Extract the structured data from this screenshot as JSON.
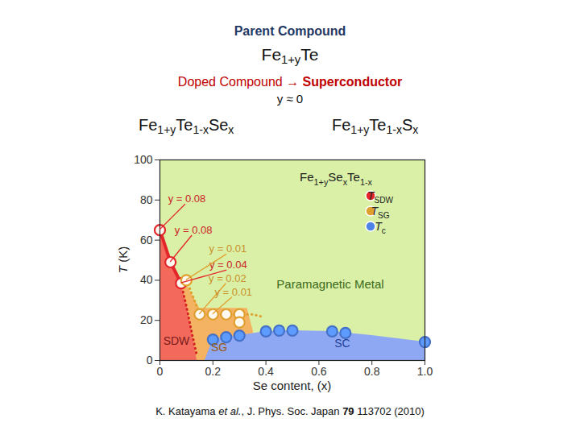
{
  "slide": {
    "parent_label": [
      {
        "text": "Parent Compound",
        "bold": true
      }
    ],
    "parent_formula": [
      {
        "text": "Fe"
      },
      {
        "text": "1+y",
        "sub": true
      },
      {
        "text": "Te"
      }
    ],
    "doped_label": [
      {
        "text": "Doped Compound → "
      },
      {
        "text": "Superconductor",
        "bold": true
      }
    ],
    "y_condition": [
      {
        "text": "y ≈ 0"
      }
    ],
    "doped_formulas": [
      [
        {
          "text": "Fe"
        },
        {
          "text": "1+y",
          "sub": true
        },
        {
          "text": "Te"
        },
        {
          "text": "1-x",
          "sub": true
        },
        {
          "text": "Se"
        },
        {
          "text": "x",
          "sub": true
        }
      ],
      [
        {
          "text": "Fe"
        },
        {
          "text": "1+y",
          "sub": true
        },
        {
          "text": "Te"
        },
        {
          "text": "1-x",
          "sub": true
        },
        {
          "text": "S"
        },
        {
          "text": "x",
          "sub": true
        }
      ]
    ],
    "citation": [
      {
        "text": "K. Katayama "
      },
      {
        "text": "et al.",
        "italic": true
      },
      {
        "text": ", J. Phys. Soc. Japan "
      },
      {
        "text": "79",
        "bold": true
      },
      {
        "text": " 113702 (2010)"
      }
    ]
  },
  "chart_data": {
    "type": "scatter",
    "x_label": [
      {
        "text": "Se content, (x)"
      }
    ],
    "y_label": [
      {
        "text": "T",
        "italic": true
      },
      {
        "text": " (K)"
      }
    ],
    "xlim": [
      0,
      1
    ],
    "xticks": [
      0,
      0.2,
      0.4,
      0.6,
      0.8,
      {
        "value": 1,
        "label": "1.0"
      }
    ],
    "ylim": [
      0,
      100
    ],
    "yticks": [
      0,
      20,
      40,
      60,
      80,
      100
    ],
    "grid": false,
    "legend": "top-right",
    "legend_title": [
      {
        "text": "Fe"
      },
      {
        "text": "1+y",
        "sub": true
      },
      {
        "text": "Se"
      },
      {
        "text": "x",
        "sub": true
      },
      {
        "text": "Te"
      },
      {
        "text": "1-x",
        "sub": true
      }
    ],
    "series": [
      {
        "name": [
          {
            "text": "T",
            "italic": true
          },
          {
            "text": "SDW",
            "sub": true
          }
        ],
        "color": "#e3262b",
        "marker": "open",
        "x": [
          0,
          0.04,
          0.08
        ],
        "values": [
          65,
          49,
          38.5
        ],
        "point_labels": [
          "y = 0.08",
          "y = 0.08",
          "y = 0.04"
        ]
      },
      {
        "name": [
          {
            "text": "T",
            "italic": true
          },
          {
            "text": "SG",
            "sub": true
          }
        ],
        "color": "#e0a030",
        "marker": "open",
        "x": [
          0.1,
          0.15,
          0.2,
          0.25,
          0.3,
          0.3
        ],
        "values": [
          40,
          23,
          23,
          23,
          23,
          19
        ],
        "point_labels": [
          "y = 0.01",
          "y = 0.02",
          "y = 0.01",
          null,
          null,
          null
        ]
      },
      {
        "name": [
          {
            "text": "T",
            "italic": true
          },
          {
            "text": "c",
            "sub": true
          }
        ],
        "color": "#4f82e6",
        "marker": "filled",
        "x": [
          0.2,
          0.25,
          0.3,
          0.4,
          0.45,
          0.5,
          0.65,
          0.7,
          1
        ],
        "values": [
          10.4,
          11.6,
          12.4,
          14.5,
          14.9,
          14.9,
          14.5,
          13.7,
          9.2
        ],
        "point_labels": [
          null,
          null,
          null,
          null,
          null,
          null,
          null,
          null,
          null
        ]
      }
    ],
    "background": {
      "name": "Paramagnetic Metal",
      "color": "#d9f0a6"
    },
    "regions": [
      {
        "name": "SG",
        "color": "#f4b263",
        "x": [
          0.08,
          0.1,
          0.15,
          0.33,
          0.38
        ],
        "y": [
          38.5,
          38,
          26,
          26,
          0
        ]
      },
      {
        "name": "SC",
        "color": "#8ea8f4",
        "x": [
          0.17,
          0.2,
          0.25,
          0.3,
          0.4,
          0.5,
          0.65,
          0.8,
          1
        ],
        "y": [
          0,
          10.4,
          11.6,
          12.4,
          14.5,
          14.9,
          14.5,
          12.5,
          9.2
        ]
      },
      {
        "name": "SDW",
        "color": "#f36a5c",
        "x": [
          0,
          0.04,
          0.08,
          0.1,
          0.12,
          0.14
        ],
        "y": [
          65,
          49,
          38.5,
          28,
          14,
          0
        ]
      }
    ],
    "boundaries": [
      {
        "color": "#e3262b",
        "line_style": "solid",
        "x": [
          0,
          0.04,
          0.08
        ],
        "y": [
          65,
          49,
          38.5
        ]
      },
      {
        "color": "#d42020",
        "line_style": "dotted",
        "x": [
          0.08,
          0.1,
          0.12,
          0.14
        ],
        "y": [
          38.5,
          27,
          14,
          2
        ]
      },
      {
        "color": "#e0a030",
        "line_style": "dotted",
        "x": [
          0.1,
          0.13,
          0.15,
          0.35,
          0.38
        ],
        "y": [
          40,
          30,
          23,
          23,
          22
        ]
      }
    ]
  }
}
